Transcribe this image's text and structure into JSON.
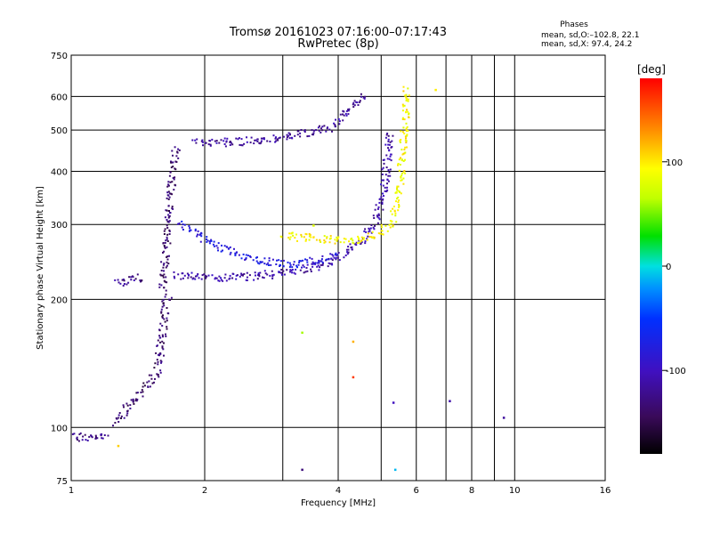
{
  "chart_data": {
    "type": "scatter",
    "title": "Tromsø 20161023 07:16:00–07:17:43",
    "subtitle": "RwPretec (8p)",
    "phases": {
      "heading": "Phases",
      "line_o": "mean, sd,O:–102.8, 22.1",
      "line_x": "mean, sd,X:  97.4, 24.2"
    },
    "xlabel": "Frequency [MHz]",
    "ylabel": "Stationary phase Virtual Height [km]",
    "x_scale": "log",
    "y_scale": "log",
    "xlim": [
      1,
      16
    ],
    "ylim": [
      75,
      750
    ],
    "x_ticks": [
      1,
      2,
      4,
      6,
      8,
      10,
      16
    ],
    "x_grid": [
      2,
      3,
      4,
      5,
      6,
      7,
      8,
      9,
      10
    ],
    "y_ticks": [
      75,
      100,
      200,
      300,
      400,
      500,
      600,
      750
    ],
    "y_grid": [
      100,
      200,
      300,
      400,
      500,
      600
    ],
    "grid": true,
    "colorbar": {
      "label": "[deg]",
      "range": [
        -180,
        180
      ],
      "ticks": [
        100,
        0,
        -100
      ],
      "colormap": "rainbow (black-purple-blue-cyan-green-yellow-orange-red)"
    },
    "traces": [
      {
        "id": "low-base",
        "xy": [
          [
            1.0,
            96
          ],
          [
            1.05,
            95
          ],
          [
            1.1,
            95
          ],
          [
            1.15,
            95
          ],
          [
            1.2,
            96
          ]
        ],
        "phase": -120
      },
      {
        "id": "rise-1",
        "xy": [
          [
            1.25,
            102
          ],
          [
            1.3,
            108
          ],
          [
            1.35,
            114
          ],
          [
            1.4,
            118
          ],
          [
            1.45,
            122
          ],
          [
            1.5,
            128
          ],
          [
            1.55,
            135
          ],
          [
            1.58,
            150
          ],
          [
            1.6,
            170
          ],
          [
            1.62,
            190
          ],
          [
            1.65,
            205
          ]
        ],
        "phase": -135
      },
      {
        "id": "flat-220",
        "xy": [
          [
            1.26,
            222
          ],
          [
            1.3,
            220
          ],
          [
            1.35,
            222
          ],
          [
            1.4,
            224
          ],
          [
            1.45,
            226
          ]
        ],
        "phase": -125
      },
      {
        "id": "cusp-1",
        "xy": [
          [
            1.6,
            210
          ],
          [
            1.62,
            240
          ],
          [
            1.63,
            270
          ],
          [
            1.65,
            300
          ],
          [
            1.66,
            340
          ],
          [
            1.68,
            380
          ],
          [
            1.7,
            430
          ],
          [
            1.72,
            460
          ]
        ],
        "phase": -135
      },
      {
        "id": "f1-trace",
        "xy": [
          [
            1.7,
            230
          ],
          [
            1.8,
            228
          ],
          [
            2.0,
            226
          ],
          [
            2.3,
            226
          ],
          [
            2.6,
            228
          ],
          [
            3.0,
            232
          ],
          [
            3.3,
            236
          ],
          [
            3.6,
            242
          ],
          [
            3.9,
            250
          ],
          [
            4.2,
            262
          ],
          [
            4.5,
            278
          ],
          [
            4.8,
            300
          ],
          [
            5.0,
            340
          ],
          [
            5.1,
            390
          ],
          [
            5.15,
            440
          ],
          [
            5.2,
            500
          ]
        ],
        "phase": -110
      },
      {
        "id": "f1-upper",
        "xy": [
          [
            1.75,
            300
          ],
          [
            1.9,
            290
          ],
          [
            2.1,
            270
          ],
          [
            2.4,
            255
          ],
          [
            2.8,
            245
          ],
          [
            3.2,
            242
          ],
          [
            3.6,
            248
          ],
          [
            4.0,
            255
          ]
        ],
        "phase": -80
      },
      {
        "id": "f2-high",
        "xy": [
          [
            1.9,
            470
          ],
          [
            2.2,
            470
          ],
          [
            2.6,
            475
          ],
          [
            3.0,
            485
          ],
          [
            3.4,
            495
          ],
          [
            3.8,
            510
          ],
          [
            4.1,
            540
          ],
          [
            4.4,
            590
          ],
          [
            4.6,
            610
          ]
        ],
        "phase": -115
      },
      {
        "id": "x-trace",
        "xy": [
          [
            3.0,
            285
          ],
          [
            3.4,
            280
          ],
          [
            3.8,
            278
          ],
          [
            4.2,
            275
          ],
          [
            4.6,
            280
          ],
          [
            5.0,
            290
          ],
          [
            5.3,
            310
          ],
          [
            5.45,
            360
          ],
          [
            5.55,
            420
          ],
          [
            5.6,
            480
          ],
          [
            5.65,
            560
          ],
          [
            5.7,
            630
          ]
        ],
        "phase": 95
      }
    ],
    "outliers": [
      {
        "x": 1.27,
        "y": 91,
        "phase": 110
      },
      {
        "x": 3.3,
        "y": 168,
        "phase": 60
      },
      {
        "x": 3.3,
        "y": 80,
        "phase": -130
      },
      {
        "x": 3.5,
        "y": 300,
        "phase": 80
      },
      {
        "x": 4.3,
        "y": 160,
        "phase": 120
      },
      {
        "x": 4.3,
        "y": 132,
        "phase": 160
      },
      {
        "x": 5.3,
        "y": 115,
        "phase": -100
      },
      {
        "x": 5.35,
        "y": 80,
        "phase": -10
      },
      {
        "x": 6.6,
        "y": 625,
        "phase": 100
      },
      {
        "x": 7.1,
        "y": 116,
        "phase": -110
      },
      {
        "x": 9.4,
        "y": 106,
        "phase": -115
      }
    ]
  }
}
